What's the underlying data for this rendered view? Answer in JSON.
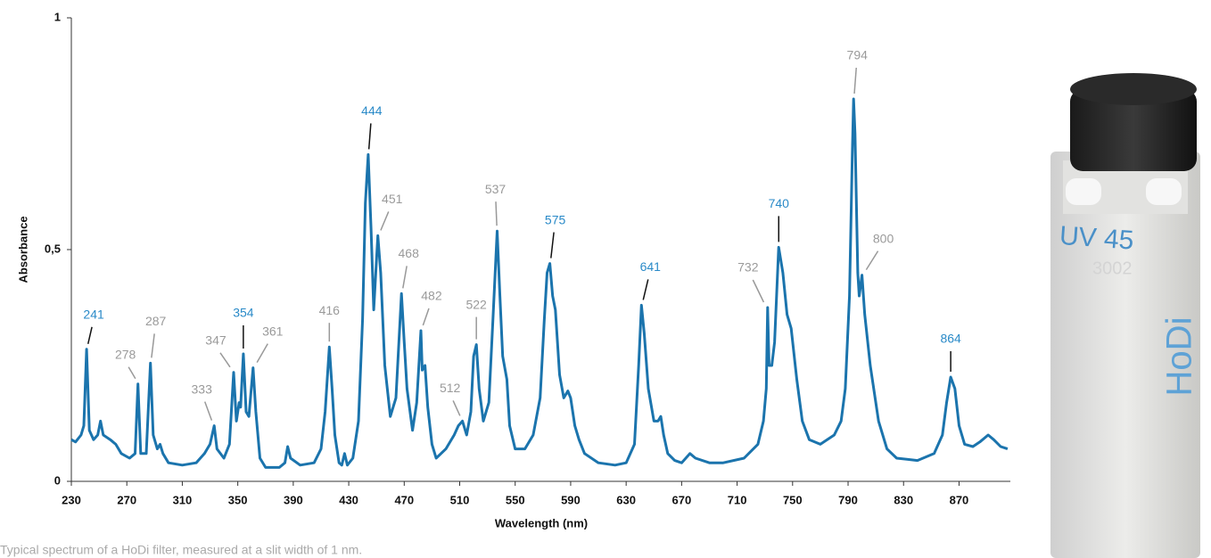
{
  "chart_data": {
    "type": "line",
    "xlabel": "Wavelength (nm)",
    "ylabel": "Absorbance",
    "caption": "Typical spectrum of a HoDi filter, measured at a slit width of 1 nm.",
    "color": "#1b74ad",
    "xlim": [
      230,
      907
    ],
    "ylim": [
      0,
      1
    ],
    "xticks": [
      230,
      270,
      310,
      350,
      390,
      430,
      470,
      510,
      550,
      590,
      630,
      670,
      710,
      750,
      790,
      830,
      870
    ],
    "yticks": [
      0,
      {
        "value": 0.5,
        "label": "0,5"
      },
      1
    ],
    "x": [
      230,
      233,
      237,
      239,
      241,
      243,
      246,
      249,
      251,
      253,
      258,
      262,
      266,
      272,
      276,
      278,
      280,
      284,
      287,
      289,
      292,
      294,
      296,
      300,
      310,
      320,
      326,
      330,
      333,
      335,
      340,
      344,
      347,
      349,
      351,
      352,
      354,
      356,
      358,
      361,
      363,
      366,
      370,
      380,
      384,
      386,
      388,
      395,
      405,
      410,
      413,
      416,
      418,
      420,
      423,
      425,
      427,
      429,
      433,
      437,
      440,
      442,
      444,
      446,
      448,
      451,
      453,
      456,
      460,
      464,
      468,
      470,
      472,
      476,
      479,
      482,
      483,
      485,
      487,
      490,
      493,
      500,
      506,
      509,
      512,
      515,
      518,
      520,
      522,
      524,
      527,
      531,
      534,
      537,
      539,
      541,
      544,
      546,
      550,
      557,
      563,
      568,
      571,
      573,
      575,
      577,
      579,
      582,
      585,
      588,
      590,
      593,
      596,
      600,
      610,
      622,
      630,
      636,
      639,
      641,
      643,
      646,
      650,
      653,
      655,
      657,
      660,
      665,
      670,
      676,
      680,
      690,
      700,
      715,
      725,
      729,
      731,
      732,
      733,
      735,
      737,
      740,
      743,
      746,
      749,
      753,
      757,
      762,
      770,
      780,
      785,
      788,
      791,
      793,
      794,
      795,
      797,
      798,
      800,
      802,
      806,
      812,
      818,
      825,
      840,
      852,
      858,
      861,
      864,
      867,
      870,
      874,
      880,
      885,
      891,
      895,
      900,
      905
    ],
    "values": [
      0.09,
      0.085,
      0.1,
      0.12,
      0.285,
      0.11,
      0.09,
      0.1,
      0.13,
      0.1,
      0.09,
      0.08,
      0.06,
      0.05,
      0.06,
      0.21,
      0.06,
      0.06,
      0.255,
      0.1,
      0.07,
      0.08,
      0.06,
      0.04,
      0.035,
      0.04,
      0.06,
      0.08,
      0.12,
      0.07,
      0.05,
      0.08,
      0.235,
      0.13,
      0.17,
      0.16,
      0.275,
      0.15,
      0.14,
      0.245,
      0.15,
      0.05,
      0.03,
      0.03,
      0.04,
      0.075,
      0.05,
      0.035,
      0.04,
      0.07,
      0.15,
      0.29,
      0.2,
      0.1,
      0.04,
      0.035,
      0.06,
      0.035,
      0.05,
      0.13,
      0.35,
      0.6,
      0.705,
      0.55,
      0.37,
      0.53,
      0.45,
      0.25,
      0.14,
      0.18,
      0.405,
      0.3,
      0.2,
      0.11,
      0.17,
      0.325,
      0.24,
      0.25,
      0.16,
      0.08,
      0.05,
      0.07,
      0.1,
      0.12,
      0.13,
      0.1,
      0.15,
      0.27,
      0.295,
      0.2,
      0.13,
      0.17,
      0.35,
      0.54,
      0.4,
      0.27,
      0.22,
      0.12,
      0.07,
      0.07,
      0.1,
      0.18,
      0.35,
      0.45,
      0.47,
      0.4,
      0.37,
      0.23,
      0.18,
      0.195,
      0.18,
      0.12,
      0.09,
      0.06,
      0.04,
      0.035,
      0.04,
      0.08,
      0.25,
      0.38,
      0.32,
      0.2,
      0.13,
      0.13,
      0.14,
      0.1,
      0.06,
      0.045,
      0.04,
      0.06,
      0.05,
      0.04,
      0.04,
      0.05,
      0.08,
      0.13,
      0.2,
      0.375,
      0.25,
      0.25,
      0.3,
      0.505,
      0.45,
      0.36,
      0.33,
      0.22,
      0.13,
      0.09,
      0.08,
      0.1,
      0.13,
      0.2,
      0.4,
      0.7,
      0.825,
      0.75,
      0.45,
      0.4,
      0.445,
      0.36,
      0.25,
      0.13,
      0.07,
      0.05,
      0.045,
      0.06,
      0.1,
      0.17,
      0.225,
      0.2,
      0.12,
      0.08,
      0.075,
      0.085,
      0.1,
      0.09,
      0.075,
      0.07
    ],
    "peaks": [
      {
        "x": 241,
        "color": "#2a8ac8"
      },
      {
        "x": 278,
        "color": "#9a9a9a"
      },
      {
        "x": 287,
        "color": "#9a9a9a"
      },
      {
        "x": 333,
        "color": "#9a9a9a"
      },
      {
        "x": 347,
        "color": "#9a9a9a"
      },
      {
        "x": 354,
        "color": "#2a8ac8"
      },
      {
        "x": 361,
        "color": "#9a9a9a"
      },
      {
        "x": 416,
        "color": "#9a9a9a"
      },
      {
        "x": 444,
        "color": "#2a8ac8"
      },
      {
        "x": 451,
        "color": "#9a9a9a"
      },
      {
        "x": 468,
        "color": "#9a9a9a"
      },
      {
        "x": 482,
        "color": "#9a9a9a"
      },
      {
        "x": 512,
        "color": "#9a9a9a"
      },
      {
        "x": 522,
        "color": "#9a9a9a"
      },
      {
        "x": 537,
        "color": "#9a9a9a"
      },
      {
        "x": 575,
        "color": "#2a8ac8"
      },
      {
        "x": 641,
        "color": "#2a8ac8"
      },
      {
        "x": 732,
        "color": "#9a9a9a"
      },
      {
        "x": 740,
        "color": "#2a8ac8"
      },
      {
        "x": 794,
        "color": "#9a9a9a"
      },
      {
        "x": 800,
        "color": "#9a9a9a"
      },
      {
        "x": 864,
        "color": "#2a8ac8"
      }
    ]
  },
  "image": {
    "labels": [
      "UV 45",
      "3002",
      "HoDi"
    ]
  }
}
